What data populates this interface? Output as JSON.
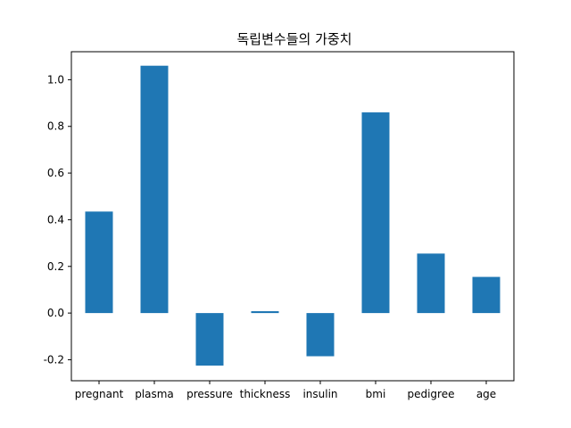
{
  "chart_data": {
    "type": "bar",
    "title": "독립변수들의 가중치",
    "xlabel": "",
    "ylabel": "",
    "categories": [
      "pregnant",
      "plasma",
      "pressure",
      "thickness",
      "insulin",
      "bmi",
      "pedigree",
      "age"
    ],
    "values": [
      0.435,
      1.06,
      -0.225,
      0.008,
      -0.185,
      0.86,
      0.255,
      0.155
    ],
    "ylim": [
      -0.29,
      1.12
    ],
    "yticks": [
      -0.2,
      0.0,
      0.2,
      0.4,
      0.6,
      0.8,
      1.0
    ],
    "ytick_labels": [
      "-0.2",
      "0.0",
      "0.2",
      "0.4",
      "0.6",
      "0.8",
      "1.0"
    ],
    "grid": false,
    "legend": false,
    "bar_color": "#1f77b4"
  }
}
